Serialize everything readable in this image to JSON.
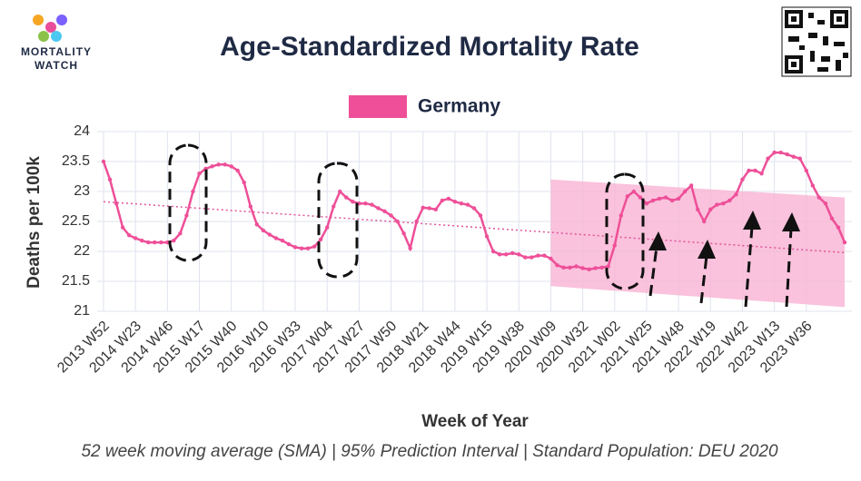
{
  "logo": {
    "line1": "MORTALITY",
    "line2": "WATCH"
  },
  "chart_data": {
    "type": "line",
    "title": "Age-Standardized Mortality Rate",
    "subtitle": "52 week moving average (SMA) | 95% Prediction Interval | Standard Population: DEU 2020",
    "x_label": "Week of Year",
    "y_label": "Deaths per 100k",
    "categories": [
      "2013 W52",
      null,
      null,
      null,
      null,
      "2014 W23",
      null,
      null,
      null,
      null,
      "2014 W46",
      null,
      null,
      null,
      null,
      "2015 W17",
      null,
      null,
      null,
      null,
      "2015 W40",
      null,
      null,
      null,
      null,
      "2016 W10",
      null,
      null,
      null,
      null,
      "2016 W33",
      null,
      null,
      null,
      null,
      "2017 W04",
      null,
      null,
      null,
      null,
      "2017 W27",
      null,
      null,
      null,
      null,
      "2017 W50",
      null,
      null,
      null,
      null,
      "2018 W21",
      null,
      null,
      null,
      null,
      "2018 W44",
      null,
      null,
      null,
      null,
      "2019 W15",
      null,
      null,
      null,
      null,
      "2019 W38",
      null,
      null,
      null,
      null,
      "2020 W09",
      null,
      null,
      null,
      null,
      "2020 W32",
      null,
      null,
      null,
      null,
      "2021 W02",
      null,
      null,
      null,
      null,
      "2021 W25",
      null,
      null,
      null,
      null,
      "2021 W48",
      null,
      null,
      null,
      null,
      "2022 W19",
      null,
      null,
      null,
      null,
      "2022 W42",
      null,
      null,
      null,
      null,
      "2023 W13",
      null,
      null,
      null,
      null,
      "2023 W36",
      null,
      null,
      null,
      null,
      null,
      null
    ],
    "series": [
      {
        "name": "Germany",
        "color": "#ee4f98",
        "values": [
          23.5,
          23.2,
          22.8,
          22.4,
          22.27,
          22.22,
          22.18,
          22.15,
          22.15,
          22.15,
          22.15,
          22.18,
          22.3,
          22.6,
          23.0,
          23.3,
          23.38,
          23.42,
          23.45,
          23.45,
          23.42,
          23.35,
          23.15,
          22.75,
          22.45,
          22.35,
          22.28,
          22.22,
          22.18,
          22.12,
          22.07,
          22.05,
          22.05,
          22.08,
          22.2,
          22.4,
          22.75,
          23.0,
          22.9,
          22.83,
          22.8,
          22.8,
          22.78,
          22.72,
          22.67,
          22.6,
          22.5,
          22.3,
          22.05,
          22.5,
          22.73,
          22.72,
          22.7,
          22.85,
          22.88,
          22.83,
          22.8,
          22.78,
          22.72,
          22.6,
          22.25,
          22.0,
          21.95,
          21.95,
          21.97,
          21.95,
          21.9,
          21.9,
          21.93,
          21.93,
          21.88,
          21.77,
          21.73,
          21.73,
          21.75,
          21.72,
          21.7,
          21.72,
          21.73,
          21.75,
          22.1,
          22.6,
          22.92,
          23.0,
          22.9,
          22.8,
          22.85,
          22.88,
          22.9,
          22.85,
          22.88,
          23.0,
          23.1,
          22.7,
          22.5,
          22.7,
          22.78,
          22.8,
          22.85,
          22.95,
          23.2,
          23.35,
          23.35,
          23.3,
          23.55,
          23.65,
          23.65,
          23.62,
          23.58,
          23.55,
          23.35,
          23.1,
          22.9,
          22.8,
          22.55,
          22.4,
          22.15
        ]
      }
    ],
    "trend": {
      "color": "#e0559b",
      "start": 22.83,
      "end": 21.98
    },
    "prediction_interval": {
      "color": "#f9b3d3",
      "start": 70,
      "upper": [
        23.2,
        22.9
      ],
      "lower": [
        21.42,
        21.07
      ]
    },
    "ylim": [
      21,
      24
    ],
    "yticks": [
      21,
      21.5,
      22,
      22.5,
      23,
      23.5,
      24
    ],
    "grid": true,
    "legend": "top"
  }
}
